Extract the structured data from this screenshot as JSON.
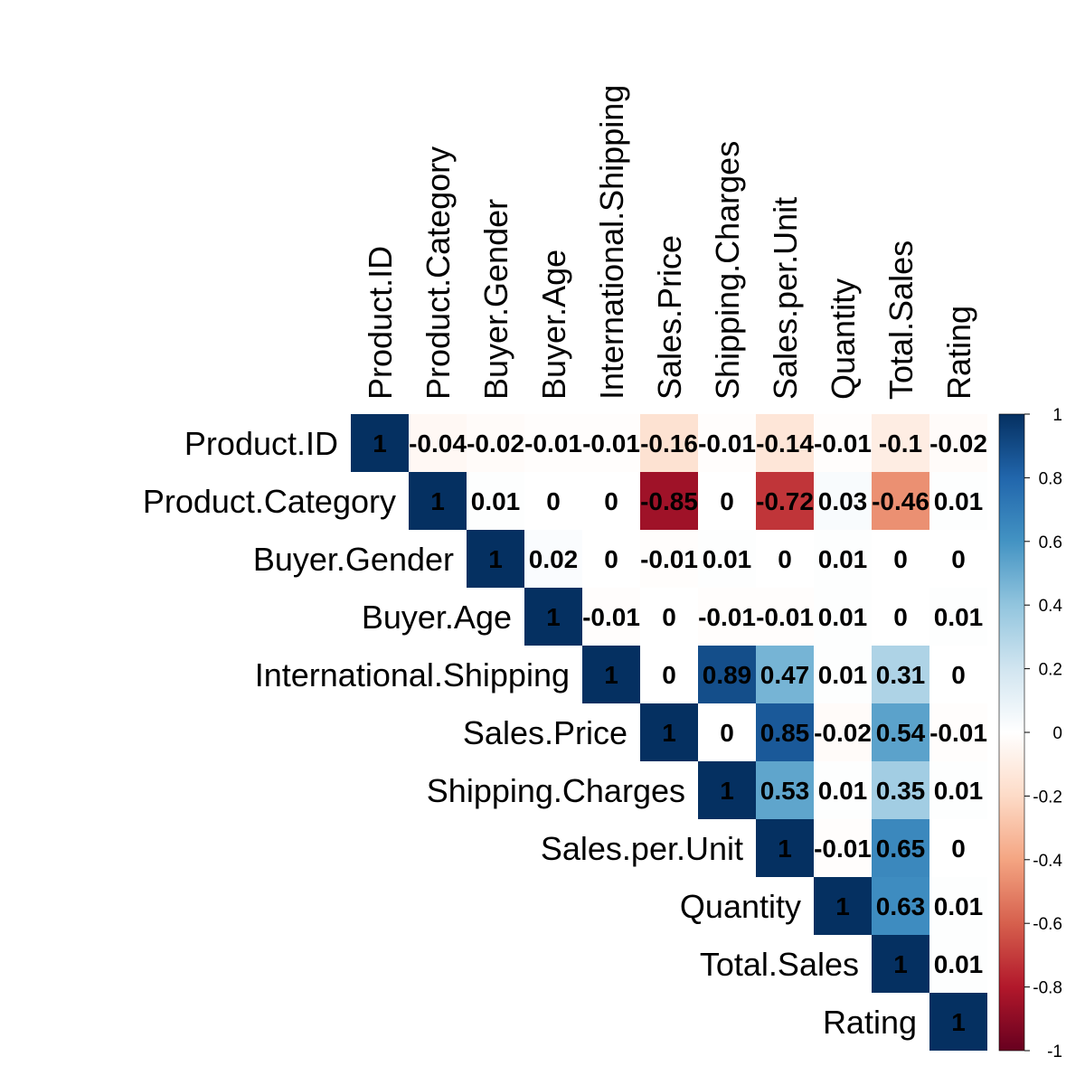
{
  "chart_data": {
    "type": "heatmap",
    "title": "",
    "variables": [
      "Product.ID",
      "Product.Category",
      "Buyer.Gender",
      "Buyer.Age",
      "International.Shipping",
      "Sales.Price",
      "Shipping.Charges",
      "Sales.per.Unit",
      "Quantity",
      "Total.Sales",
      "Rating"
    ],
    "layout": "upper-triangle",
    "values": [
      [
        "1",
        "-0.04",
        "-0.02",
        "-0.01",
        "-0.01",
        "-0.16",
        "-0.01",
        "-0.14",
        "-0.01",
        "-0.1",
        "-0.02"
      ],
      [
        null,
        "1",
        "0.01",
        "0",
        "0",
        "-0.85",
        "0",
        "-0.72",
        "0.03",
        "-0.46",
        "0.01"
      ],
      [
        null,
        null,
        "1",
        "0.02",
        "0",
        "-0.01",
        "0.01",
        "0",
        "0.01",
        "0",
        "0"
      ],
      [
        null,
        null,
        null,
        "1",
        "-0.01",
        "0",
        "-0.01",
        "-0.01",
        "0.01",
        "0",
        "0.01"
      ],
      [
        null,
        null,
        null,
        null,
        "1",
        "0",
        "0.89",
        "0.47",
        "0.01",
        "0.31",
        "0"
      ],
      [
        null,
        null,
        null,
        null,
        null,
        "1",
        "0",
        "0.85",
        "-0.02",
        "0.54",
        "-0.01"
      ],
      [
        null,
        null,
        null,
        null,
        null,
        null,
        "1",
        "0.53",
        "0.01",
        "0.35",
        "0.01"
      ],
      [
        null,
        null,
        null,
        null,
        null,
        null,
        null,
        "1",
        "-0.01",
        "0.65",
        "0"
      ],
      [
        null,
        null,
        null,
        null,
        null,
        null,
        null,
        null,
        "1",
        "0.63",
        "0.01"
      ],
      [
        null,
        null,
        null,
        null,
        null,
        null,
        null,
        null,
        null,
        "1",
        "0.01"
      ],
      [
        null,
        null,
        null,
        null,
        null,
        null,
        null,
        null,
        null,
        null,
        "1"
      ]
    ],
    "colorbar": {
      "range": [
        -1,
        1
      ],
      "ticks": [
        "1",
        "0.8",
        "0.6",
        "0.4",
        "0.2",
        "0",
        "-0.2",
        "-0.4",
        "-0.6",
        "-0.8",
        "-1"
      ],
      "palette": [
        "#67001F",
        "#B2182B",
        "#D6604D",
        "#F4A582",
        "#FDDBC7",
        "#FFFFFF",
        "#D1E5F0",
        "#92C5DE",
        "#4393C3",
        "#2166AC",
        "#053061"
      ],
      "placement": "right"
    },
    "grid": false,
    "legend": "colorbar-right"
  }
}
